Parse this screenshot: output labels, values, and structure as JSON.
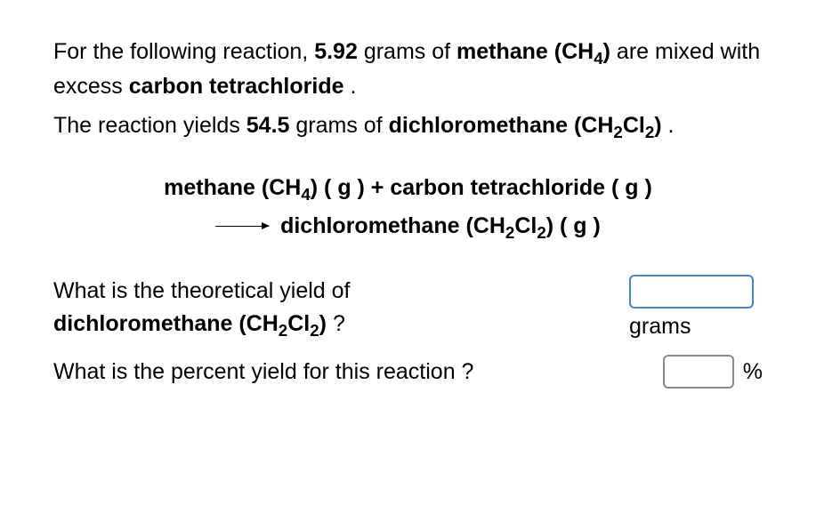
{
  "intro": {
    "line1_pre": "For the following reaction, ",
    "mass1": "5.92",
    "line1_mid": " grams of ",
    "reactant1": "methane (CH",
    "reactant1_sub": "4",
    "reactant1_close": ")",
    "line1_post": " are mixed with excess ",
    "reactant2": "carbon tetrachloride",
    "line1_end": " .",
    "line2_pre": "The reaction yields ",
    "mass2": "54.5",
    "line2_mid": " grams of ",
    "product": "dichloromethane (CH",
    "product_sub1": "2",
    "product_mid": "Cl",
    "product_sub2": "2",
    "product_close": ")",
    "line2_end": " ."
  },
  "equation": {
    "r1": "methane (CH",
    "r1_sub": "4",
    "r1_close": ") ( g ) + carbon tetrachloride ( g )",
    "p": "dichloromethane (CH",
    "p_sub1": "2",
    "p_mid": "Cl",
    "p_sub2": "2",
    "p_close": ") ( g )"
  },
  "questions": {
    "q1_pre": "What is the theoretical yield of",
    "q1_bold": "dichloromethane (CH",
    "q1_sub1": "2",
    "q1_mid": "Cl",
    "q1_sub2": "2",
    "q1_close": ")",
    "q1_end": " ?",
    "q1_unit": "grams",
    "q2": "What is the percent yield for this reaction ?",
    "q2_unit": "%"
  },
  "style": {
    "input_border_active": "#4682d8",
    "input_border_plain": "#888888",
    "text_color": "#000000",
    "background": "#ffffff",
    "font_size_pt": 19
  }
}
